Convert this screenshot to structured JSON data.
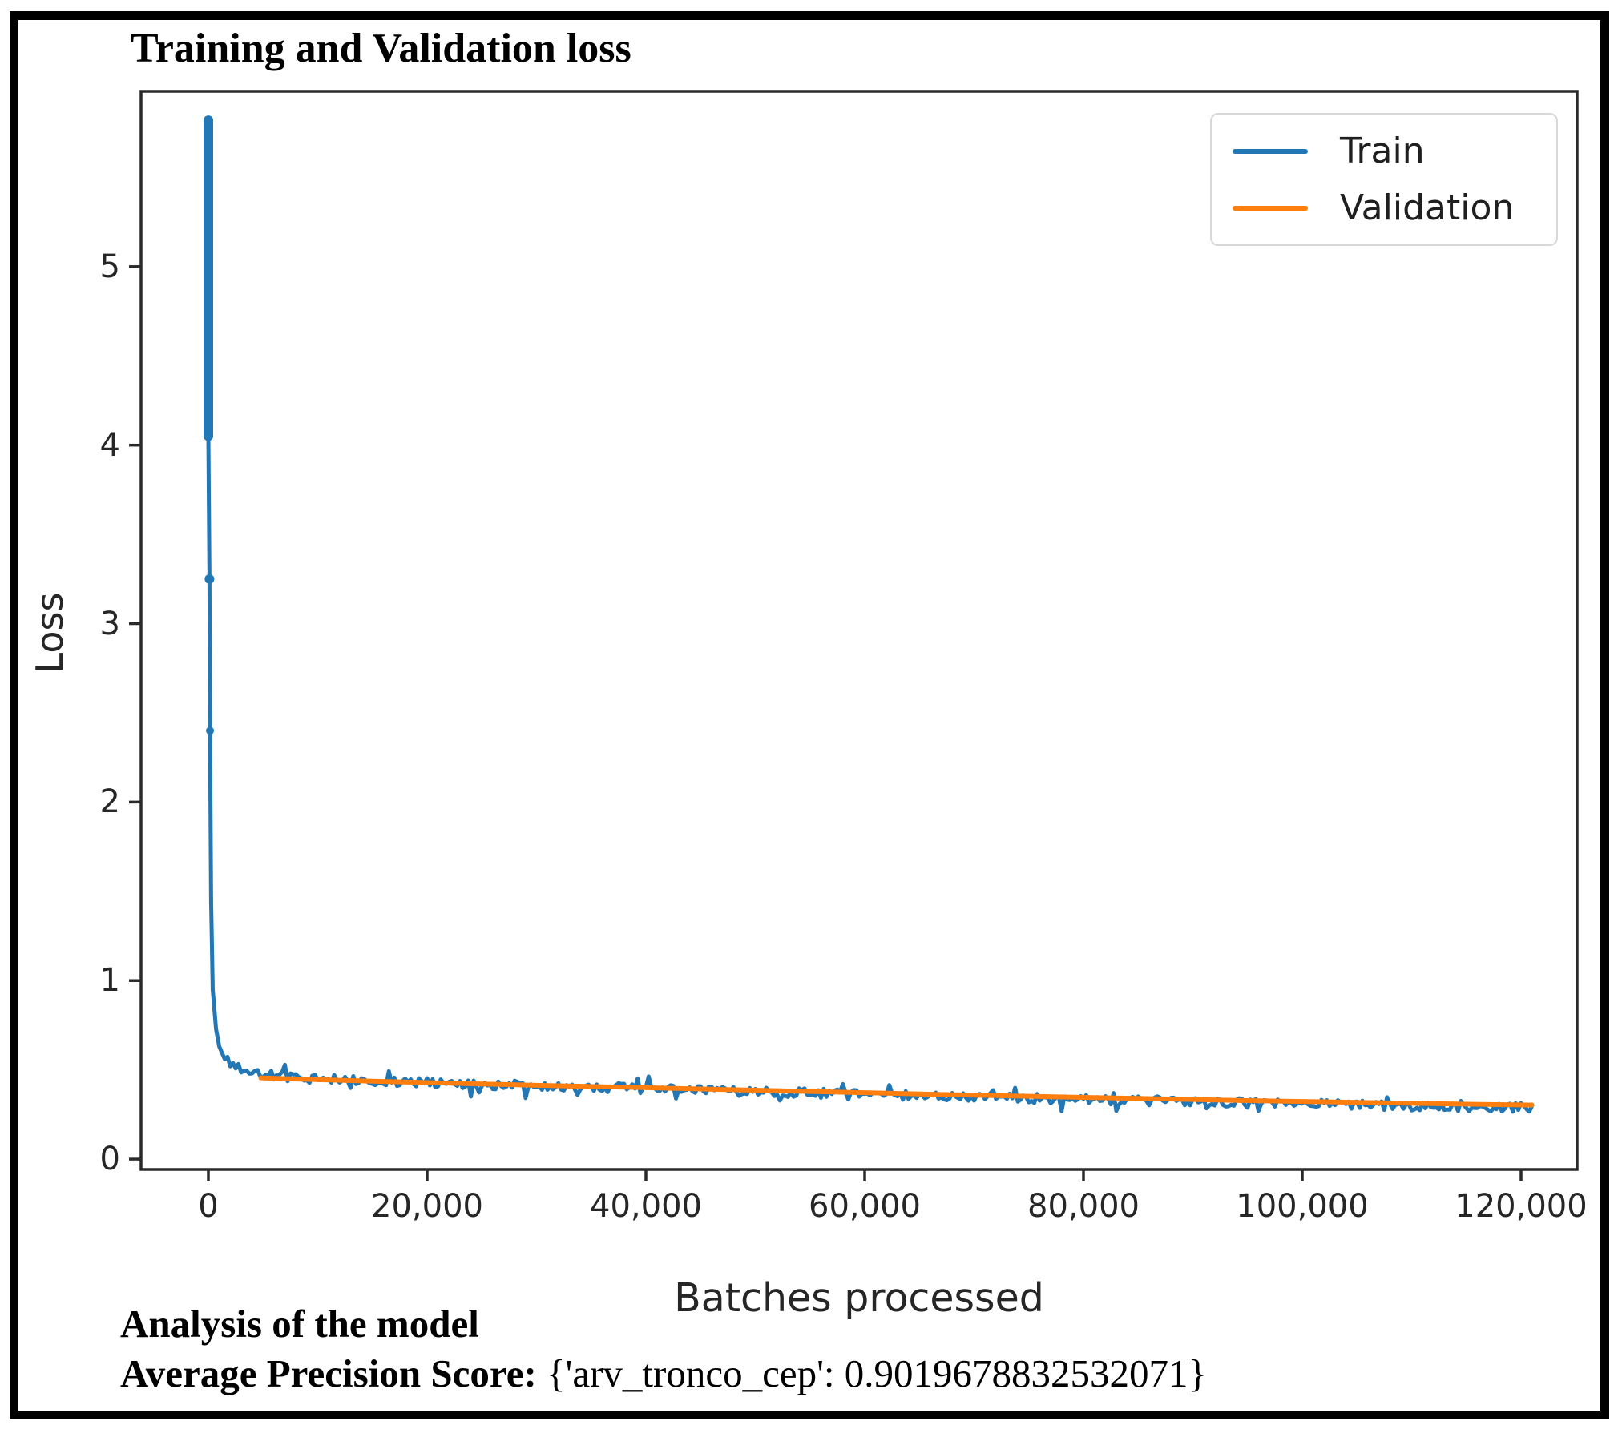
{
  "chart_data": {
    "type": "line",
    "title": "Training and Validation loss",
    "xlabel": "Batches processed",
    "ylabel": "Loss",
    "xlim": [
      -6154,
      125128
    ],
    "ylim": [
      -0.058,
      5.982
    ],
    "x_ticks": [
      0,
      20000,
      40000,
      60000,
      80000,
      100000,
      120000
    ],
    "x_tick_labels": [
      "0",
      "20,000",
      "40,000",
      "60,000",
      "80,000",
      "100,000",
      "120,000"
    ],
    "y_ticks": [
      0,
      1,
      2,
      3,
      4,
      5
    ],
    "y_tick_labels": [
      "0",
      "1",
      "2",
      "3",
      "4",
      "5"
    ],
    "grid": false,
    "legend_position": "upper right",
    "axis_color": "#2a2a2a",
    "train_noise_amplitude": 0.026,
    "series": [
      {
        "name": "Train",
        "color": "#2277b4",
        "dense_start_range": [
          4.05,
          5.82
        ],
        "points": [
          [
            0,
            5.82
          ],
          [
            0,
            4.05
          ],
          [
            100,
            3.25
          ],
          [
            150,
            2.4
          ],
          [
            250,
            1.45
          ],
          [
            400,
            0.95
          ],
          [
            700,
            0.73
          ],
          [
            1000,
            0.63
          ],
          [
            1500,
            0.56
          ],
          [
            2500,
            0.515
          ],
          [
            4000,
            0.485
          ],
          [
            6000,
            0.468
          ],
          [
            8000,
            0.458
          ],
          [
            10000,
            0.45
          ],
          [
            15000,
            0.44
          ],
          [
            20000,
            0.428
          ],
          [
            25000,
            0.42
          ],
          [
            30000,
            0.41
          ],
          [
            35000,
            0.402
          ],
          [
            40000,
            0.394
          ],
          [
            45000,
            0.386
          ],
          [
            50000,
            0.378
          ],
          [
            55000,
            0.37
          ],
          [
            60000,
            0.362
          ],
          [
            65000,
            0.354
          ],
          [
            70000,
            0.347
          ],
          [
            75000,
            0.34
          ],
          [
            80000,
            0.334
          ],
          [
            85000,
            0.328
          ],
          [
            90000,
            0.322
          ],
          [
            95000,
            0.316
          ],
          [
            100000,
            0.31
          ],
          [
            105000,
            0.304
          ],
          [
            110000,
            0.298
          ],
          [
            115000,
            0.292
          ],
          [
            121000,
            0.286
          ]
        ]
      },
      {
        "name": "Validation",
        "color": "#ff7e0e",
        "points": [
          [
            4800,
            0.455
          ],
          [
            10000,
            0.445
          ],
          [
            15000,
            0.437
          ],
          [
            20000,
            0.429
          ],
          [
            25000,
            0.421
          ],
          [
            30000,
            0.414
          ],
          [
            35000,
            0.407
          ],
          [
            40000,
            0.4
          ],
          [
            45000,
            0.393
          ],
          [
            50000,
            0.386
          ],
          [
            55000,
            0.379
          ],
          [
            60000,
            0.372
          ],
          [
            65000,
            0.365
          ],
          [
            70000,
            0.358
          ],
          [
            75000,
            0.352
          ],
          [
            80000,
            0.346
          ],
          [
            85000,
            0.34
          ],
          [
            90000,
            0.334
          ],
          [
            95000,
            0.328
          ],
          [
            100000,
            0.323
          ],
          [
            105000,
            0.318
          ],
          [
            110000,
            0.313
          ],
          [
            115000,
            0.308
          ],
          [
            121000,
            0.303
          ]
        ]
      }
    ]
  },
  "analysis": {
    "heading": "Analysis of the model",
    "ap_label": "Average Precision Score:",
    "ap_value": "{'arv_tronco_cep': 0.9019678832532071}"
  }
}
